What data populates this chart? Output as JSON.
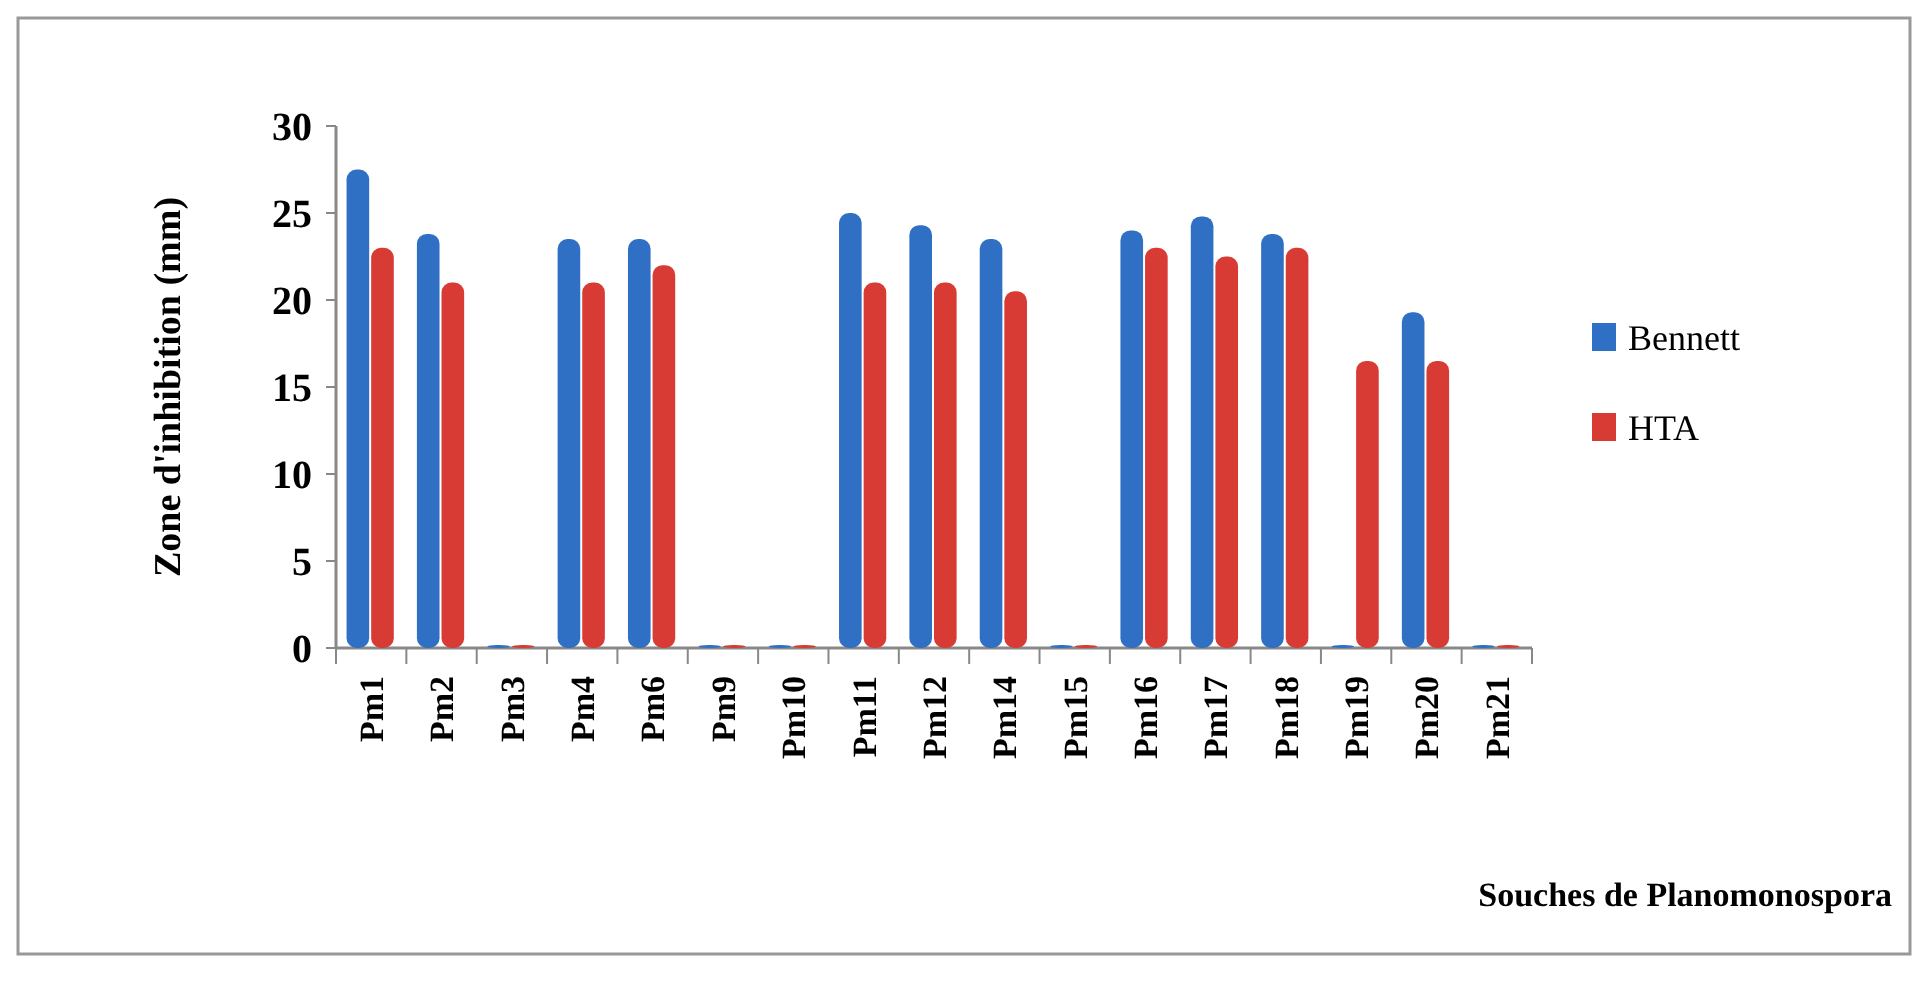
{
  "chart_data": {
    "type": "bar",
    "xlabel": "Souches de Planomonospora",
    "ylabel": "Zone  d'inhibition (mm)",
    "categories": [
      "Pm1",
      "Pm2",
      "Pm3",
      "Pm4",
      "Pm6",
      "Pm9",
      "Pm10",
      "Pm11",
      "Pm12",
      "Pm14",
      "Pm15",
      "Pm16",
      "Pm17",
      "Pm18",
      "Pm19",
      "Pm20",
      "Pm21"
    ],
    "series": [
      {
        "name": "Bennett",
        "color": "#2f6fc4",
        "values": [
          27.5,
          23.8,
          0,
          23.5,
          23.5,
          0,
          0,
          25,
          24.3,
          23.5,
          0,
          24,
          24.8,
          23.8,
          0,
          19.3,
          0
        ]
      },
      {
        "name": "HTA",
        "color": "#d83a34",
        "values": [
          23,
          21,
          0,
          21,
          22,
          0,
          0,
          21,
          21,
          20.5,
          0,
          23,
          22.5,
          23,
          16.5,
          16.5,
          0
        ]
      }
    ],
    "ylim": [
      0,
      30
    ],
    "yticks": [
      0,
      5,
      10,
      15,
      20,
      25,
      30
    ],
    "grid": false,
    "legend": "right"
  }
}
